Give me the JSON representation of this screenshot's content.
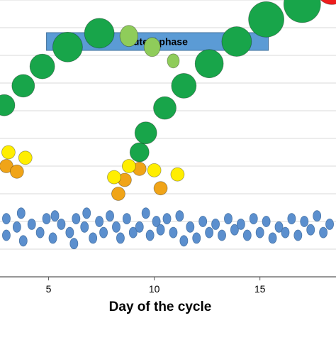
{
  "chart_data": {
    "type": "scatter",
    "title": "",
    "xlabel": "Day of the cycle",
    "ylabel": "",
    "xlim": [
      2.7,
      18.6
    ],
    "ylim": [
      0,
      10
    ],
    "x_ticks": [
      5,
      10,
      15
    ],
    "grid": true,
    "band": {
      "label": "Luteal phase",
      "x_start": 4.9,
      "x_end": 15.4,
      "color": "#5b9bd5"
    },
    "series": [
      {
        "kind": "dominant-follicle",
        "color": "#18a54a",
        "points": [
          {
            "x": 2.9,
            "y": 6.2,
            "size": 1.5
          },
          {
            "x": 3.8,
            "y": 6.9,
            "size": 1.6
          },
          {
            "x": 4.7,
            "y": 7.6,
            "size": 1.75
          },
          {
            "x": 5.9,
            "y": 8.3,
            "size": 2.1
          },
          {
            "x": 7.4,
            "y": 8.8,
            "size": 2.1
          },
          {
            "x": 9.3,
            "y": 4.5,
            "size": 1.35
          },
          {
            "x": 9.6,
            "y": 5.2,
            "size": 1.55
          },
          {
            "x": 10.5,
            "y": 6.1,
            "size": 1.6
          },
          {
            "x": 11.4,
            "y": 6.9,
            "size": 1.75
          },
          {
            "x": 12.6,
            "y": 7.7,
            "size": 2.0
          },
          {
            "x": 13.9,
            "y": 8.5,
            "size": 2.1
          },
          {
            "x": 15.3,
            "y": 9.3,
            "size": 2.5
          },
          {
            "x": 17.0,
            "y": 9.85,
            "size": 2.6
          }
        ]
      },
      {
        "kind": "regressing-follicle",
        "color": "#8fcc5a",
        "points": [
          {
            "x": 8.8,
            "y": 8.7,
            "size": 1.5
          },
          {
            "x": 9.9,
            "y": 8.3,
            "size": 1.35
          },
          {
            "x": 10.9,
            "y": 7.8,
            "size": 1.0
          }
        ]
      },
      {
        "kind": "ovulatory-follicle",
        "color": "#ee1c1c",
        "points": [
          {
            "x": 18.4,
            "y": 10.4,
            "size": 2.2
          }
        ]
      },
      {
        "kind": "selected-follicles",
        "color": "#f0a418",
        "points": [
          {
            "x": 3.0,
            "y": 4.0,
            "size": 0.95
          },
          {
            "x": 3.5,
            "y": 3.8,
            "size": 0.95
          },
          {
            "x": 8.3,
            "y": 3.0,
            "size": 0.95
          },
          {
            "x": 8.6,
            "y": 3.5,
            "size": 0.95
          },
          {
            "x": 9.3,
            "y": 3.9,
            "size": 0.95
          },
          {
            "x": 10.3,
            "y": 3.2,
            "size": 0.95
          }
        ]
      },
      {
        "kind": "recruited-follicles",
        "color": "#ffee00",
        "points": [
          {
            "x": 3.1,
            "y": 4.5,
            "size": 0.95
          },
          {
            "x": 3.9,
            "y": 4.3,
            "size": 0.95
          },
          {
            "x": 8.1,
            "y": 3.6,
            "size": 0.95
          },
          {
            "x": 8.8,
            "y": 4.0,
            "size": 0.95
          },
          {
            "x": 10.0,
            "y": 3.85,
            "size": 0.95
          },
          {
            "x": 11.1,
            "y": 3.7,
            "size": 0.95
          }
        ]
      },
      {
        "kind": "antral-follicles",
        "color": "#5b8fce",
        "points": [
          {
            "x": 3.0,
            "y": 2.1
          },
          {
            "x": 3.0,
            "y": 1.5
          },
          {
            "x": 3.5,
            "y": 1.8
          },
          {
            "x": 3.7,
            "y": 2.3
          },
          {
            "x": 3.8,
            "y": 1.3
          },
          {
            "x": 4.2,
            "y": 1.9
          },
          {
            "x": 4.6,
            "y": 1.6
          },
          {
            "x": 4.9,
            "y": 2.1
          },
          {
            "x": 5.2,
            "y": 1.4
          },
          {
            "x": 5.3,
            "y": 2.2
          },
          {
            "x": 5.6,
            "y": 1.9
          },
          {
            "x": 6.0,
            "y": 1.6
          },
          {
            "x": 6.2,
            "y": 1.2
          },
          {
            "x": 6.3,
            "y": 2.1
          },
          {
            "x": 6.7,
            "y": 1.8
          },
          {
            "x": 6.8,
            "y": 2.3
          },
          {
            "x": 7.1,
            "y": 1.4
          },
          {
            "x": 7.4,
            "y": 2.0
          },
          {
            "x": 7.6,
            "y": 1.6
          },
          {
            "x": 7.9,
            "y": 2.2
          },
          {
            "x": 8.2,
            "y": 1.8
          },
          {
            "x": 8.4,
            "y": 1.4
          },
          {
            "x": 8.7,
            "y": 2.1
          },
          {
            "x": 9.0,
            "y": 1.6
          },
          {
            "x": 9.3,
            "y": 1.8
          },
          {
            "x": 9.6,
            "y": 2.3
          },
          {
            "x": 9.8,
            "y": 1.5
          },
          {
            "x": 10.1,
            "y": 2.0
          },
          {
            "x": 10.3,
            "y": 1.7
          },
          {
            "x": 10.6,
            "y": 2.1
          },
          {
            "x": 10.9,
            "y": 1.6
          },
          {
            "x": 11.2,
            "y": 2.2
          },
          {
            "x": 11.4,
            "y": 1.3
          },
          {
            "x": 11.7,
            "y": 1.8
          },
          {
            "x": 12.0,
            "y": 1.4
          },
          {
            "x": 12.3,
            "y": 2.0
          },
          {
            "x": 12.6,
            "y": 1.6
          },
          {
            "x": 12.9,
            "y": 1.9
          },
          {
            "x": 13.2,
            "y": 1.5
          },
          {
            "x": 13.5,
            "y": 2.1
          },
          {
            "x": 13.8,
            "y": 1.7
          },
          {
            "x": 14.1,
            "y": 1.9
          },
          {
            "x": 14.4,
            "y": 1.5
          },
          {
            "x": 14.7,
            "y": 2.1
          },
          {
            "x": 15.0,
            "y": 1.6
          },
          {
            "x": 15.3,
            "y": 2.0
          },
          {
            "x": 15.6,
            "y": 1.4
          },
          {
            "x": 15.9,
            "y": 1.8
          },
          {
            "x": 16.2,
            "y": 1.6
          },
          {
            "x": 16.5,
            "y": 2.1
          },
          {
            "x": 16.8,
            "y": 1.5
          },
          {
            "x": 17.1,
            "y": 2.0
          },
          {
            "x": 17.4,
            "y": 1.7
          },
          {
            "x": 17.7,
            "y": 2.2
          },
          {
            "x": 18.0,
            "y": 1.6
          },
          {
            "x": 18.3,
            "y": 1.9
          }
        ]
      }
    ]
  }
}
